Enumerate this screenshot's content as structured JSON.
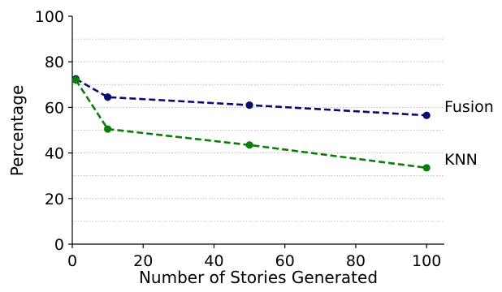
{
  "chart_data": {
    "type": "line",
    "title": "",
    "xlabel": "Number of Stories Generated",
    "ylabel": "Percentage",
    "xlim": [
      0,
      105
    ],
    "ylim": [
      0,
      100
    ],
    "xticks": [
      0,
      20,
      40,
      60,
      80,
      100
    ],
    "yticks": [
      0,
      20,
      40,
      60,
      80,
      100
    ],
    "grid": "horizontal dotted",
    "legend": "inline labels at right",
    "series": [
      {
        "name": "Fusion",
        "color": "#0b0b6e",
        "x": [
          1,
          10,
          50,
          100
        ],
        "y": [
          72.5,
          64.5,
          61,
          56.5
        ]
      },
      {
        "name": "KNN",
        "color": "#0a7d0a",
        "x": [
          1,
          10,
          50,
          100
        ],
        "y": [
          72,
          50.5,
          43.5,
          33.5
        ]
      }
    ]
  }
}
